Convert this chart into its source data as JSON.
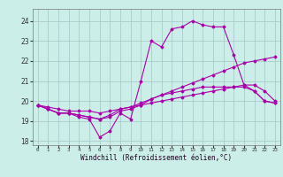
{
  "xlabel": "Windchill (Refroidissement éolien,°C)",
  "background_color": "#cceee8",
  "grid_color": "#aacccc",
  "line_color": "#aa00aa",
  "x_hours": [
    0,
    1,
    2,
    3,
    4,
    5,
    6,
    7,
    8,
    9,
    10,
    11,
    12,
    13,
    14,
    15,
    16,
    17,
    18,
    19,
    20,
    21,
    22,
    23
  ],
  "series1": [
    19.8,
    19.6,
    19.4,
    19.4,
    19.2,
    19.1,
    18.2,
    18.5,
    19.4,
    19.1,
    21.0,
    23.0,
    22.7,
    23.6,
    23.7,
    24.0,
    23.8,
    23.7,
    23.7,
    22.3,
    20.8,
    20.5,
    20.0,
    19.9
  ],
  "series2": [
    19.8,
    19.6,
    19.4,
    19.4,
    19.3,
    19.2,
    19.1,
    19.2,
    19.5,
    19.6,
    19.8,
    20.1,
    20.3,
    20.5,
    20.7,
    20.9,
    21.1,
    21.3,
    21.5,
    21.7,
    21.9,
    22.0,
    22.1,
    22.2
  ],
  "series3": [
    19.8,
    19.7,
    19.6,
    19.5,
    19.5,
    19.5,
    19.4,
    19.5,
    19.6,
    19.7,
    19.8,
    19.9,
    20.0,
    20.1,
    20.2,
    20.3,
    20.4,
    20.5,
    20.6,
    20.7,
    20.8,
    20.8,
    20.5,
    20.0
  ],
  "series4": [
    19.8,
    19.6,
    19.4,
    19.4,
    19.3,
    19.2,
    19.1,
    19.3,
    19.6,
    19.7,
    19.9,
    20.1,
    20.3,
    20.4,
    20.5,
    20.6,
    20.7,
    20.7,
    20.7,
    20.7,
    20.7,
    20.5,
    20.0,
    19.9
  ],
  "ylim": [
    17.8,
    24.6
  ],
  "yticks": [
    18,
    19,
    20,
    21,
    22,
    23,
    24
  ],
  "xtick_labels": [
    "0",
    "1",
    "2",
    "3",
    "4",
    "5",
    "6",
    "7",
    "8",
    "9",
    "10",
    "11",
    "12",
    "13",
    "14",
    "15",
    "16",
    "17",
    "18",
    "19",
    "20",
    "21",
    "22",
    "23"
  ]
}
